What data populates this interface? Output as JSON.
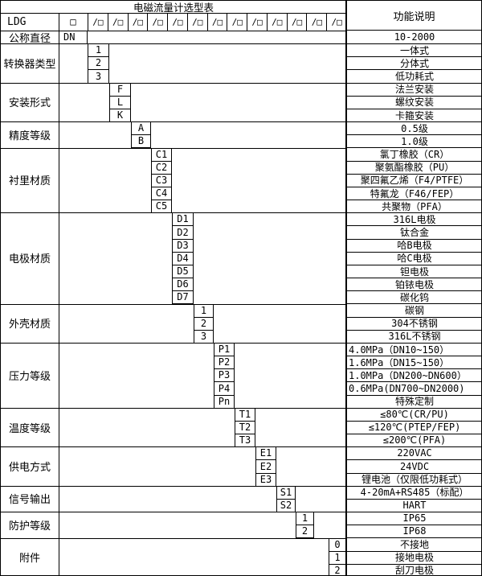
{
  "header": {
    "title": "电磁流量计选型表",
    "right_title": "功能说明",
    "model_code": "LDG",
    "first_slot": "□",
    "slot_glyph": "/□",
    "slot_count": 13
  },
  "colors": {
    "border": "#000000",
    "background": "#ffffff",
    "text": "#000000"
  },
  "table": {
    "blocks": [
      {
        "label": "公称直径",
        "codes": [
          "DN"
        ],
        "functions": [
          "10-2000"
        ]
      },
      {
        "label": "转换器类型",
        "codes": [
          "1",
          "2",
          "3"
        ],
        "functions": [
          "一体式",
          "分体式",
          "低功耗式"
        ]
      },
      {
        "label": "安装形式",
        "codes": [
          "F",
          "L",
          "K"
        ],
        "functions": [
          "法兰安装",
          "螺纹安装",
          "卡箍安装"
        ]
      },
      {
        "label": "精度等级",
        "codes": [
          "A",
          "B"
        ],
        "functions": [
          "0.5级",
          "1.0级"
        ]
      },
      {
        "label": "衬里材质",
        "codes": [
          "C1",
          "C2",
          "C3",
          "C4",
          "C5"
        ],
        "functions": [
          "氯丁橡胶（CR）",
          "聚氨酯橡胶（PU）",
          "聚四氟乙烯（F4/PTFE）",
          "特氟龙（F46/FEP）",
          "共聚物（PFA）"
        ]
      },
      {
        "label": "电极材质",
        "codes": [
          "D1",
          "D2",
          "D3",
          "D4",
          "D5",
          "D6",
          "D7"
        ],
        "functions": [
          "316L电极",
          "钛合金",
          "哈B电极",
          "哈C电极",
          "钽电极",
          "铂铱电极",
          "碳化钨"
        ]
      },
      {
        "label": "外壳材质",
        "codes": [
          "1",
          "2",
          "3"
        ],
        "functions": [
          "碳钢",
          "304不锈钢",
          "316L不锈钢"
        ]
      },
      {
        "label": "压力等级",
        "codes": [
          "P1",
          "P2",
          "P3",
          "P4",
          "Pn"
        ],
        "functions": [
          "4.0MPa（DN10~150）",
          "1.6MPa（DN15~150）",
          "1.0MPa（DN200~DN600）",
          "0.6MPa(DN700~DN2000)",
          "特殊定制"
        ]
      },
      {
        "label": "温度等级",
        "codes": [
          "T1",
          "T2",
          "T3"
        ],
        "functions": [
          "≤80℃(CR/PU)",
          "≤120℃(PTEP/FEP)",
          "≤200℃(PFA)"
        ]
      },
      {
        "label": "供电方式",
        "codes": [
          "E1",
          "E2",
          "E3"
        ],
        "functions": [
          "220VAC",
          "24VDC",
          "锂电池（仅限低功耗式）"
        ]
      },
      {
        "label": "信号输出",
        "codes": [
          "S1",
          "S2"
        ],
        "functions": [
          "4-20mA+RS485（标配）",
          "HART"
        ]
      },
      {
        "label": "防护等级",
        "codes": [
          "1",
          "2"
        ],
        "functions": [
          "IP65",
          "IP68"
        ]
      },
      {
        "label": "附件",
        "codes": [
          "0",
          "1",
          "2"
        ],
        "functions": [
          "不接地",
          "接地电极",
          "刮刀电极"
        ]
      }
    ]
  }
}
